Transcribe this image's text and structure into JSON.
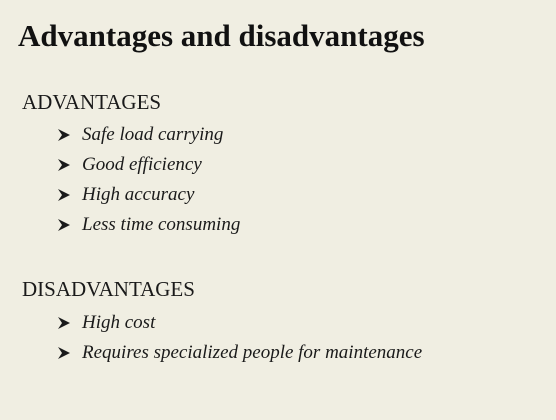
{
  "slide": {
    "title": "Advantages and disadvantages",
    "sections": [
      {
        "heading": "ADVANTAGES",
        "items": [
          "Safe load carrying",
          "Good efficiency",
          "High accuracy",
          "Less time consuming"
        ]
      },
      {
        "heading": "DISADVANTAGES",
        "items": [
          "High cost",
          "Requires specialized people for maintenance"
        ]
      }
    ]
  },
  "icons": {
    "bullet": "arrowhead-bullet-icon"
  },
  "colors": {
    "background": "#f0eee2",
    "text": "#1a1a1a"
  }
}
